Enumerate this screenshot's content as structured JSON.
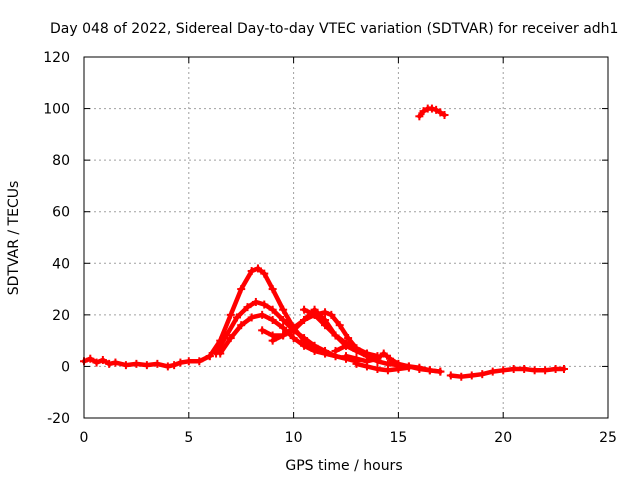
{
  "chart_data": {
    "type": "scatter",
    "title": "Day 048 of 2022, Sidereal Day-to-day VTEC variation (SDTVAR) for receiver adh1",
    "xlabel": "GPS time / hours",
    "ylabel": "SDTVAR / TECUs",
    "xlim": [
      0,
      25
    ],
    "ylim": [
      -20,
      120
    ],
    "xticks": [
      0,
      5,
      10,
      15,
      20,
      25
    ],
    "xtick_labels": [
      "0",
      "5",
      "10",
      "15",
      "20",
      "25"
    ],
    "yticks": [
      -20,
      0,
      20,
      40,
      60,
      80,
      100,
      120
    ],
    "ytick_labels": [
      "-20",
      "0",
      "20",
      "40",
      "60",
      "80",
      "100",
      "120"
    ],
    "grid": true,
    "series_color": "#ff0000",
    "series": [
      {
        "name": "baseline-early",
        "x": [
          0.0,
          0.3,
          0.6,
          0.9,
          1.2,
          1.5,
          2.0,
          2.5,
          3.0,
          3.5,
          4.0,
          4.3,
          4.6,
          5.0,
          5.5,
          6.0
        ],
        "y": [
          2,
          3,
          1.5,
          2.5,
          1,
          1.5,
          0.5,
          1,
          0.5,
          1,
          0,
          0.5,
          1.5,
          2,
          2,
          4
        ]
      },
      {
        "name": "peak-high",
        "x": [
          6.0,
          6.5,
          7.0,
          7.5,
          8.0,
          8.3,
          8.6,
          9.0,
          9.5,
          10.0,
          10.5,
          11.0,
          11.5,
          12.0,
          12.5,
          13.0
        ],
        "y": [
          4,
          10,
          20,
          30,
          37,
          38,
          36,
          30,
          22,
          15,
          10,
          7,
          5,
          4,
          3,
          2
        ]
      },
      {
        "name": "peak-mid",
        "x": [
          6.3,
          6.8,
          7.3,
          7.8,
          8.2,
          8.6,
          9.0,
          9.5,
          10.0,
          10.5,
          11.0,
          11.5,
          12.0,
          12.5
        ],
        "y": [
          5,
          12,
          19,
          23,
          25,
          24,
          22,
          18,
          14,
          11,
          8,
          6,
          4,
          3
        ]
      },
      {
        "name": "peak-low",
        "x": [
          6.5,
          7.0,
          7.5,
          8.0,
          8.5,
          9.0,
          9.5,
          10.0,
          10.5,
          11.0,
          11.5,
          12.0
        ],
        "y": [
          5,
          11,
          16,
          19,
          20,
          18,
          15,
          11,
          8,
          6,
          5,
          4
        ]
      },
      {
        "name": "second-hump-a",
        "x": [
          8.5,
          9.0,
          9.5,
          10.0,
          10.5,
          11.0,
          11.5,
          12.0,
          12.5,
          13.0,
          13.5
        ],
        "y": [
          14,
          12,
          12,
          14,
          18,
          22,
          18,
          12,
          8,
          6,
          4
        ]
      },
      {
        "name": "second-hump-b",
        "x": [
          9.0,
          9.5,
          10.0,
          10.5,
          11.0,
          11.5,
          11.8,
          12.2,
          12.6,
          13.0,
          13.5,
          14.0
        ],
        "y": [
          10,
          12,
          15,
          18,
          20,
          21,
          20,
          16,
          11,
          7,
          5,
          4
        ]
      },
      {
        "name": "second-hump-c",
        "x": [
          10.5,
          11.0,
          11.5,
          12.0,
          12.5,
          13.0,
          13.5,
          14.0
        ],
        "y": [
          22,
          20,
          16,
          12,
          9,
          7,
          5,
          3
        ]
      },
      {
        "name": "tail-a",
        "x": [
          12.0,
          12.5,
          13.0,
          13.5,
          14.0,
          14.5,
          15.0,
          15.5,
          16.0,
          16.5,
          17.0
        ],
        "y": [
          6,
          8,
          7,
          4,
          2,
          1,
          0.5,
          0,
          -1,
          -1.5,
          -2
        ]
      },
      {
        "name": "tail-b",
        "x": [
          12.5,
          13.0,
          13.5,
          14.0,
          14.3,
          14.6,
          15.0,
          15.5,
          16.0,
          16.5,
          17.0
        ],
        "y": [
          4,
          3,
          2,
          3,
          5,
          3,
          1,
          0,
          -0.5,
          -1.5,
          -2
        ]
      },
      {
        "name": "tail-c",
        "x": [
          13.0,
          13.5,
          14.0,
          14.5,
          15.0,
          15.5
        ],
        "y": [
          1,
          0,
          -1,
          -1.5,
          -1,
          -0.5
        ]
      },
      {
        "name": "late-segment",
        "x": [
          17.5,
          18.0,
          18.5,
          19.0,
          19.5,
          20.0,
          20.5,
          21.0,
          21.5,
          22.0,
          22.5,
          22.9
        ],
        "y": [
          -3.5,
          -4,
          -3.5,
          -3,
          -2,
          -1.5,
          -1,
          -1,
          -1.5,
          -1.5,
          -1,
          -1
        ]
      },
      {
        "name": "isolated-arc",
        "x": [
          16.0,
          16.2,
          16.4,
          16.6,
          16.8,
          17.0,
          17.2
        ],
        "y": [
          97,
          99,
          100,
          100,
          99.5,
          98.5,
          97.5
        ]
      }
    ]
  }
}
